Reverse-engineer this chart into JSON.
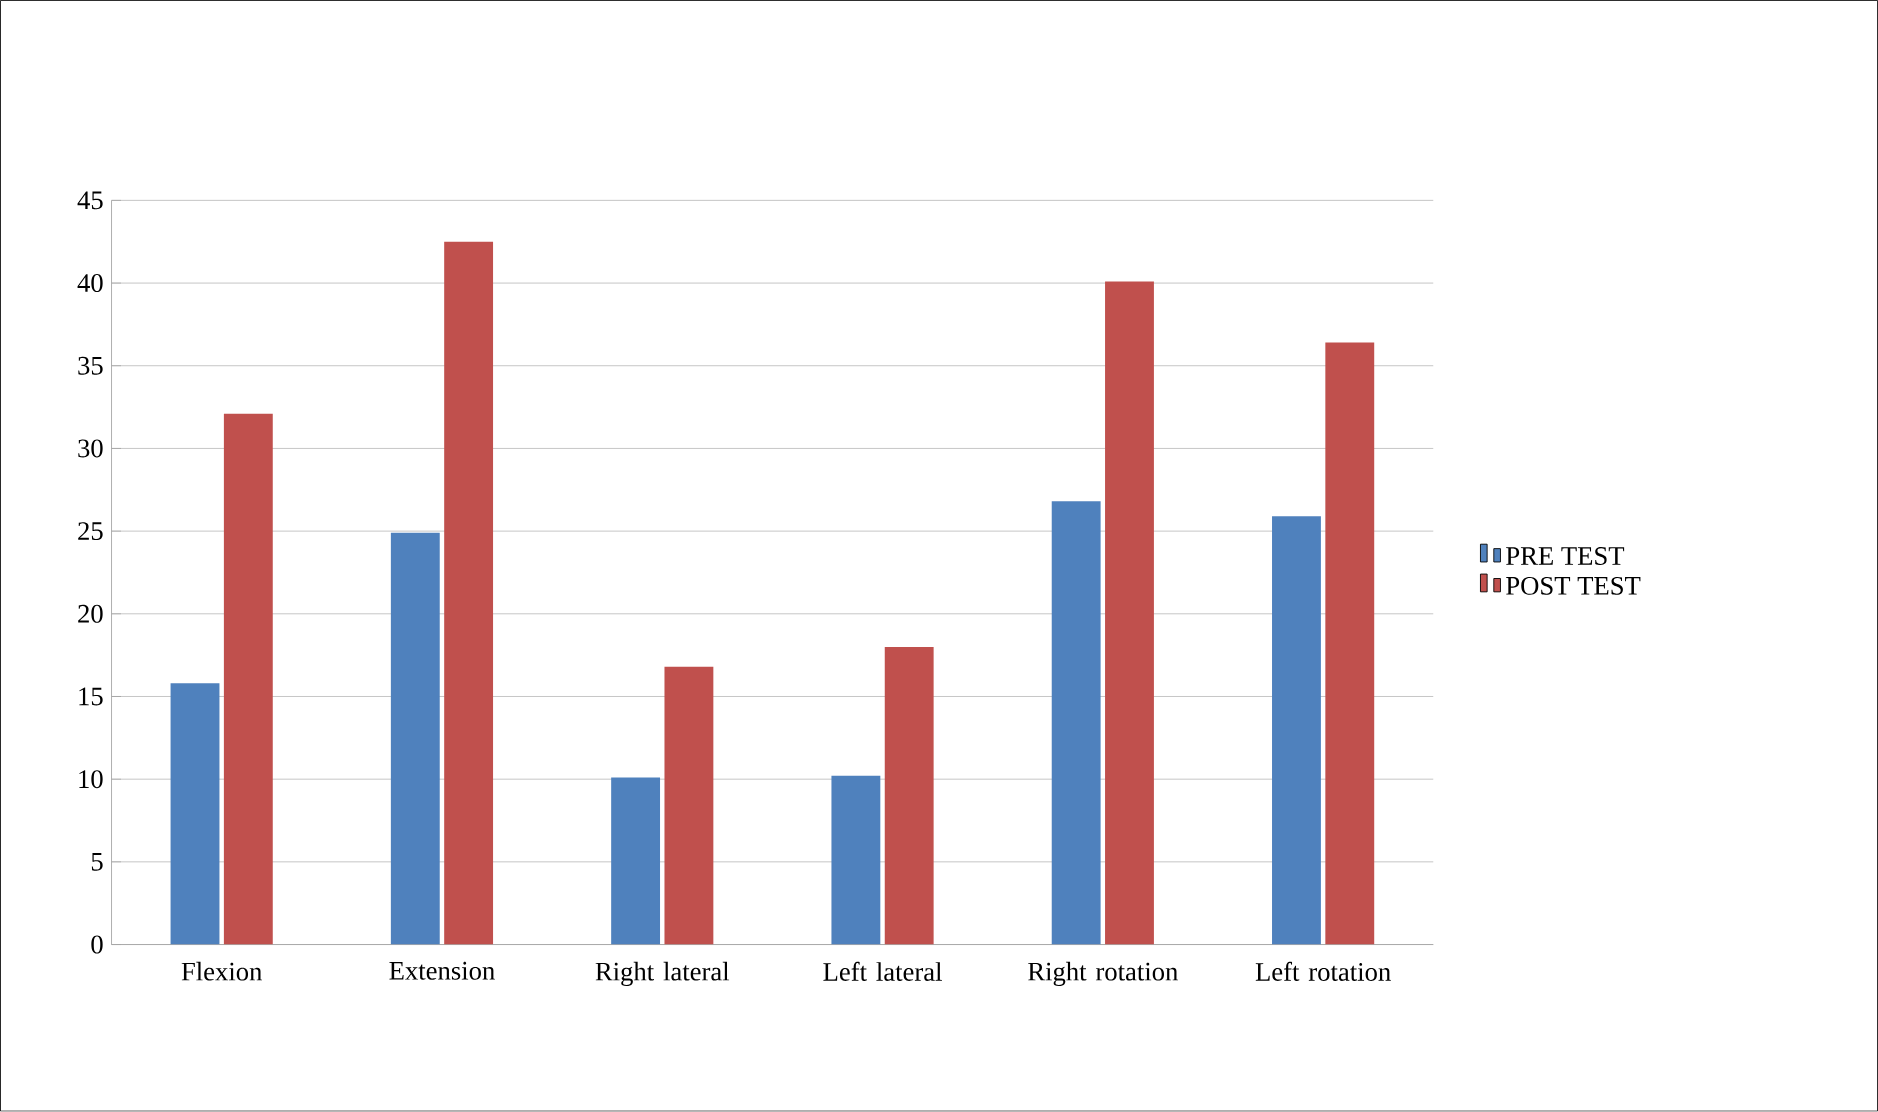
{
  "chart_data": {
    "type": "bar",
    "categories": [
      "Flexion",
      "Extension",
      "Right lateral",
      "Left lateral",
      "Right rotation",
      "Left rotation"
    ],
    "series": [
      {
        "name": "PRE TEST",
        "color": "#4f81bd",
        "values": [
          15.8,
          24.9,
          10.1,
          10.2,
          26.8,
          25.9
        ]
      },
      {
        "name": "POST TEST",
        "color": "#c0504d",
        "values": [
          32.1,
          42.5,
          16.8,
          18.0,
          40.1,
          36.4
        ]
      }
    ],
    "ylim": [
      0,
      45
    ],
    "yticks": [
      0,
      5,
      10,
      15,
      20,
      25,
      30,
      35,
      40,
      45
    ],
    "grid": "y",
    "legend": "right"
  }
}
